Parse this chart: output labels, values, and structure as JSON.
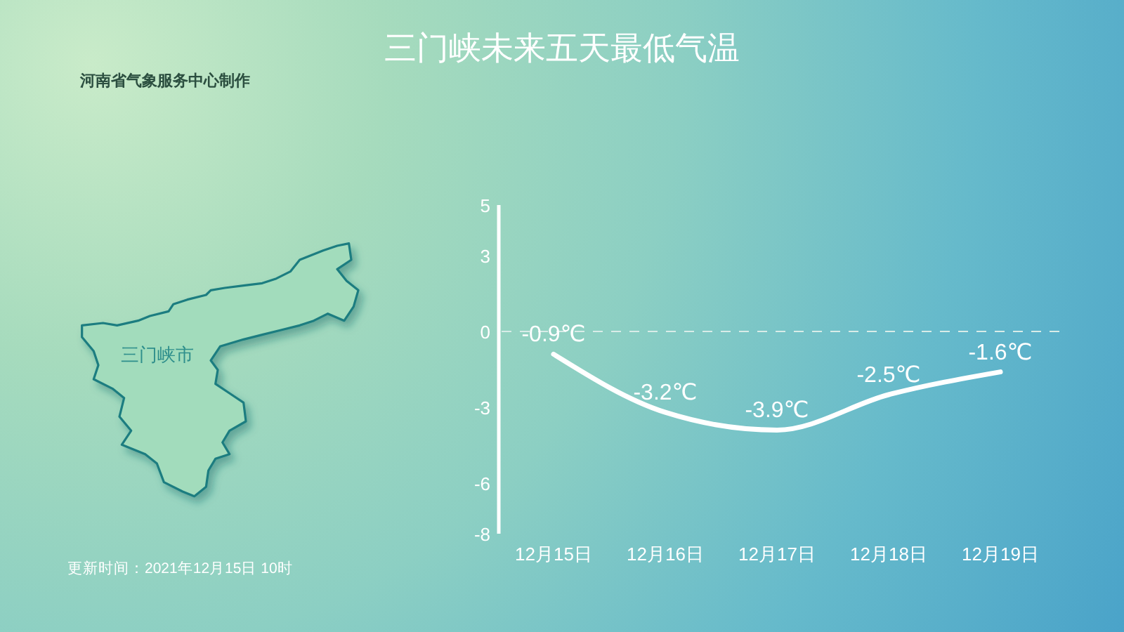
{
  "chart_data": {
    "type": "line",
    "title": "三门峡未来五天最低气温",
    "categories": [
      "12月15日",
      "12月16日",
      "12月17日",
      "12月18日",
      "12月19日"
    ],
    "values": [
      -0.9,
      -3.2,
      -3.9,
      -2.5,
      -1.6
    ],
    "color": "#ffffff",
    "value_labels": [
      "-0.9℃",
      "-3.2℃",
      "-3.9℃",
      "-2.5℃",
      "-1.6℃"
    ],
    "ylim": [
      -8,
      5
    ],
    "yticks": [
      -8,
      -6,
      -3,
      0,
      3,
      5
    ],
    "ref_lines": [
      {
        "axis": "y",
        "value": 0,
        "color": "#d8ece8",
        "line_style": "dashed"
      }
    ],
    "annotations": [
      "河南省气象服务中心制作",
      "更新时间：2021年12月15日 10时",
      "三门峡市"
    ]
  }
}
